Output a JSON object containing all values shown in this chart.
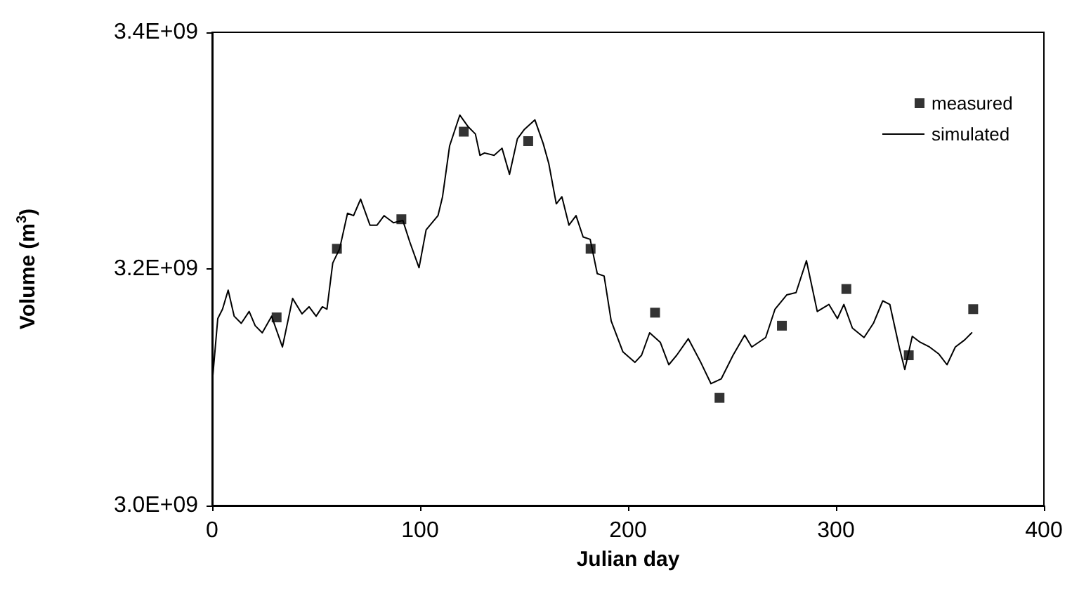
{
  "chart_data": {
    "type": "line",
    "xlabel": "Julian day",
    "ylabel": "Volume (m$^{3}$)",
    "xlim": [
      0,
      400
    ],
    "xticks": [
      0,
      100,
      200,
      300,
      400
    ],
    "ylim": [
      3000000000.0,
      3400000000.0
    ],
    "yticks": [
      {
        "value": 3000000000.0,
        "label": "3.0E+09"
      },
      {
        "value": 3200000000.0,
        "label": "3.2E+09"
      },
      {
        "value": 3400000000.0,
        "label": "3.4E+09"
      }
    ],
    "grid": false,
    "legend": "top right",
    "series": [
      {
        "name": "measured",
        "type": "scatter",
        "marker": "square",
        "color": "#000000",
        "x": [
          31,
          60,
          91,
          121,
          152,
          182,
          213,
          244,
          274,
          305,
          335,
          366
        ],
        "values": [
          3159000000.0,
          3217000000.0,
          3242000000.0,
          3316000000.0,
          3308000000.0,
          3217000000.0,
          3163000000.0,
          3091000000.0,
          3152000000.0,
          3183000000.0,
          3127000000.0,
          3166000000.0
        ]
      },
      {
        "name": "simulated",
        "type": "line",
        "marker": "none",
        "line_style": "solid",
        "color": "#000000",
        "x": [
          0,
          2.7,
          5,
          7.7,
          10.6,
          14,
          17.8,
          20.7,
          24.1,
          28.6,
          33.8,
          38.7,
          43.2,
          46.6,
          50,
          53,
          55.2,
          58,
          61.3,
          65.1,
          68,
          71.4,
          75.9,
          79.3,
          82.7,
          87.2,
          91.7,
          95,
          99.5,
          102.9,
          108.6,
          110.8,
          114.2,
          119.1,
          123.2,
          126.6,
          128.8,
          131,
          135.6,
          139.4,
          143,
          146.8,
          150.2,
          155.2,
          159.2,
          161.9,
          165.5,
          168.2,
          171.6,
          175,
          178.4,
          181.8,
          185.2,
          188.5,
          191.9,
          197.5,
          203.3,
          206.5,
          210.4,
          215.5,
          219.6,
          223.4,
          229,
          234.7,
          239.9,
          244.8,
          250.5,
          256.1,
          259.5,
          266.2,
          270.7,
          276.3,
          280.8,
          285.8,
          291,
          296.6,
          300.7,
          303.8,
          307.9,
          313.5,
          318,
          322.5,
          325.9,
          330.4,
          333.1,
          336.7,
          340.5,
          345,
          349.5,
          353.4,
          357.4,
          361.9,
          365.3
        ],
        "values": [
          3103000000.0,
          3158000000.0,
          3166000000.0,
          3182000000.0,
          3160000000.0,
          3154000000.0,
          3164000000.0,
          3152000000.0,
          3146000000.0,
          3160000000.0,
          3134000000.0,
          3175000000.0,
          3162000000.0,
          3168000000.0,
          3160000000.0,
          3168000000.0,
          3166000000.0,
          3205000000.0,
          3217000000.0,
          3247000000.0,
          3245000000.0,
          3259000000.0,
          3237000000.0,
          3237000000.0,
          3245000000.0,
          3239000000.0,
          3241000000.0,
          3223000000.0,
          3201000000.0,
          3233000000.0,
          3245000000.0,
          3261000000.0,
          3304000000.0,
          3330000000.0,
          3320000000.0,
          3314000000.0,
          3296000000.0,
          3298000000.0,
          3296000000.0,
          3302000000.0,
          3280000000.0,
          3310000000.0,
          3318000000.0,
          3326000000.0,
          3306000000.0,
          3289000000.0,
          3255000000.0,
          3261000000.0,
          3237000000.0,
          3245000000.0,
          3227000000.0,
          3225000000.0,
          3196000000.0,
          3194000000.0,
          3156000000.0,
          3130000000.0,
          3121000000.0,
          3127000000.0,
          3146000000.0,
          3138000000.0,
          3119000000.0,
          3127000000.0,
          3141000000.0,
          3122000000.0,
          3103000000.0,
          3107000000.0,
          3127000000.0,
          3144000000.0,
          3134000000.0,
          3142000000.0,
          3166000000.0,
          3178000000.0,
          3180000000.0,
          3207000000.0,
          3164000000.0,
          3170000000.0,
          3158000000.0,
          3170000000.0,
          3150000000.0,
          3142000000.0,
          3154000000.0,
          3173000000.0,
          3170000000.0,
          3134000000.0,
          3115000000.0,
          3143000000.0,
          3138000000.0,
          3134000000.0,
          3128000000.0,
          3119000000.0,
          3134000000.0,
          3140000000.0,
          3146000000.0
        ]
      }
    ]
  }
}
